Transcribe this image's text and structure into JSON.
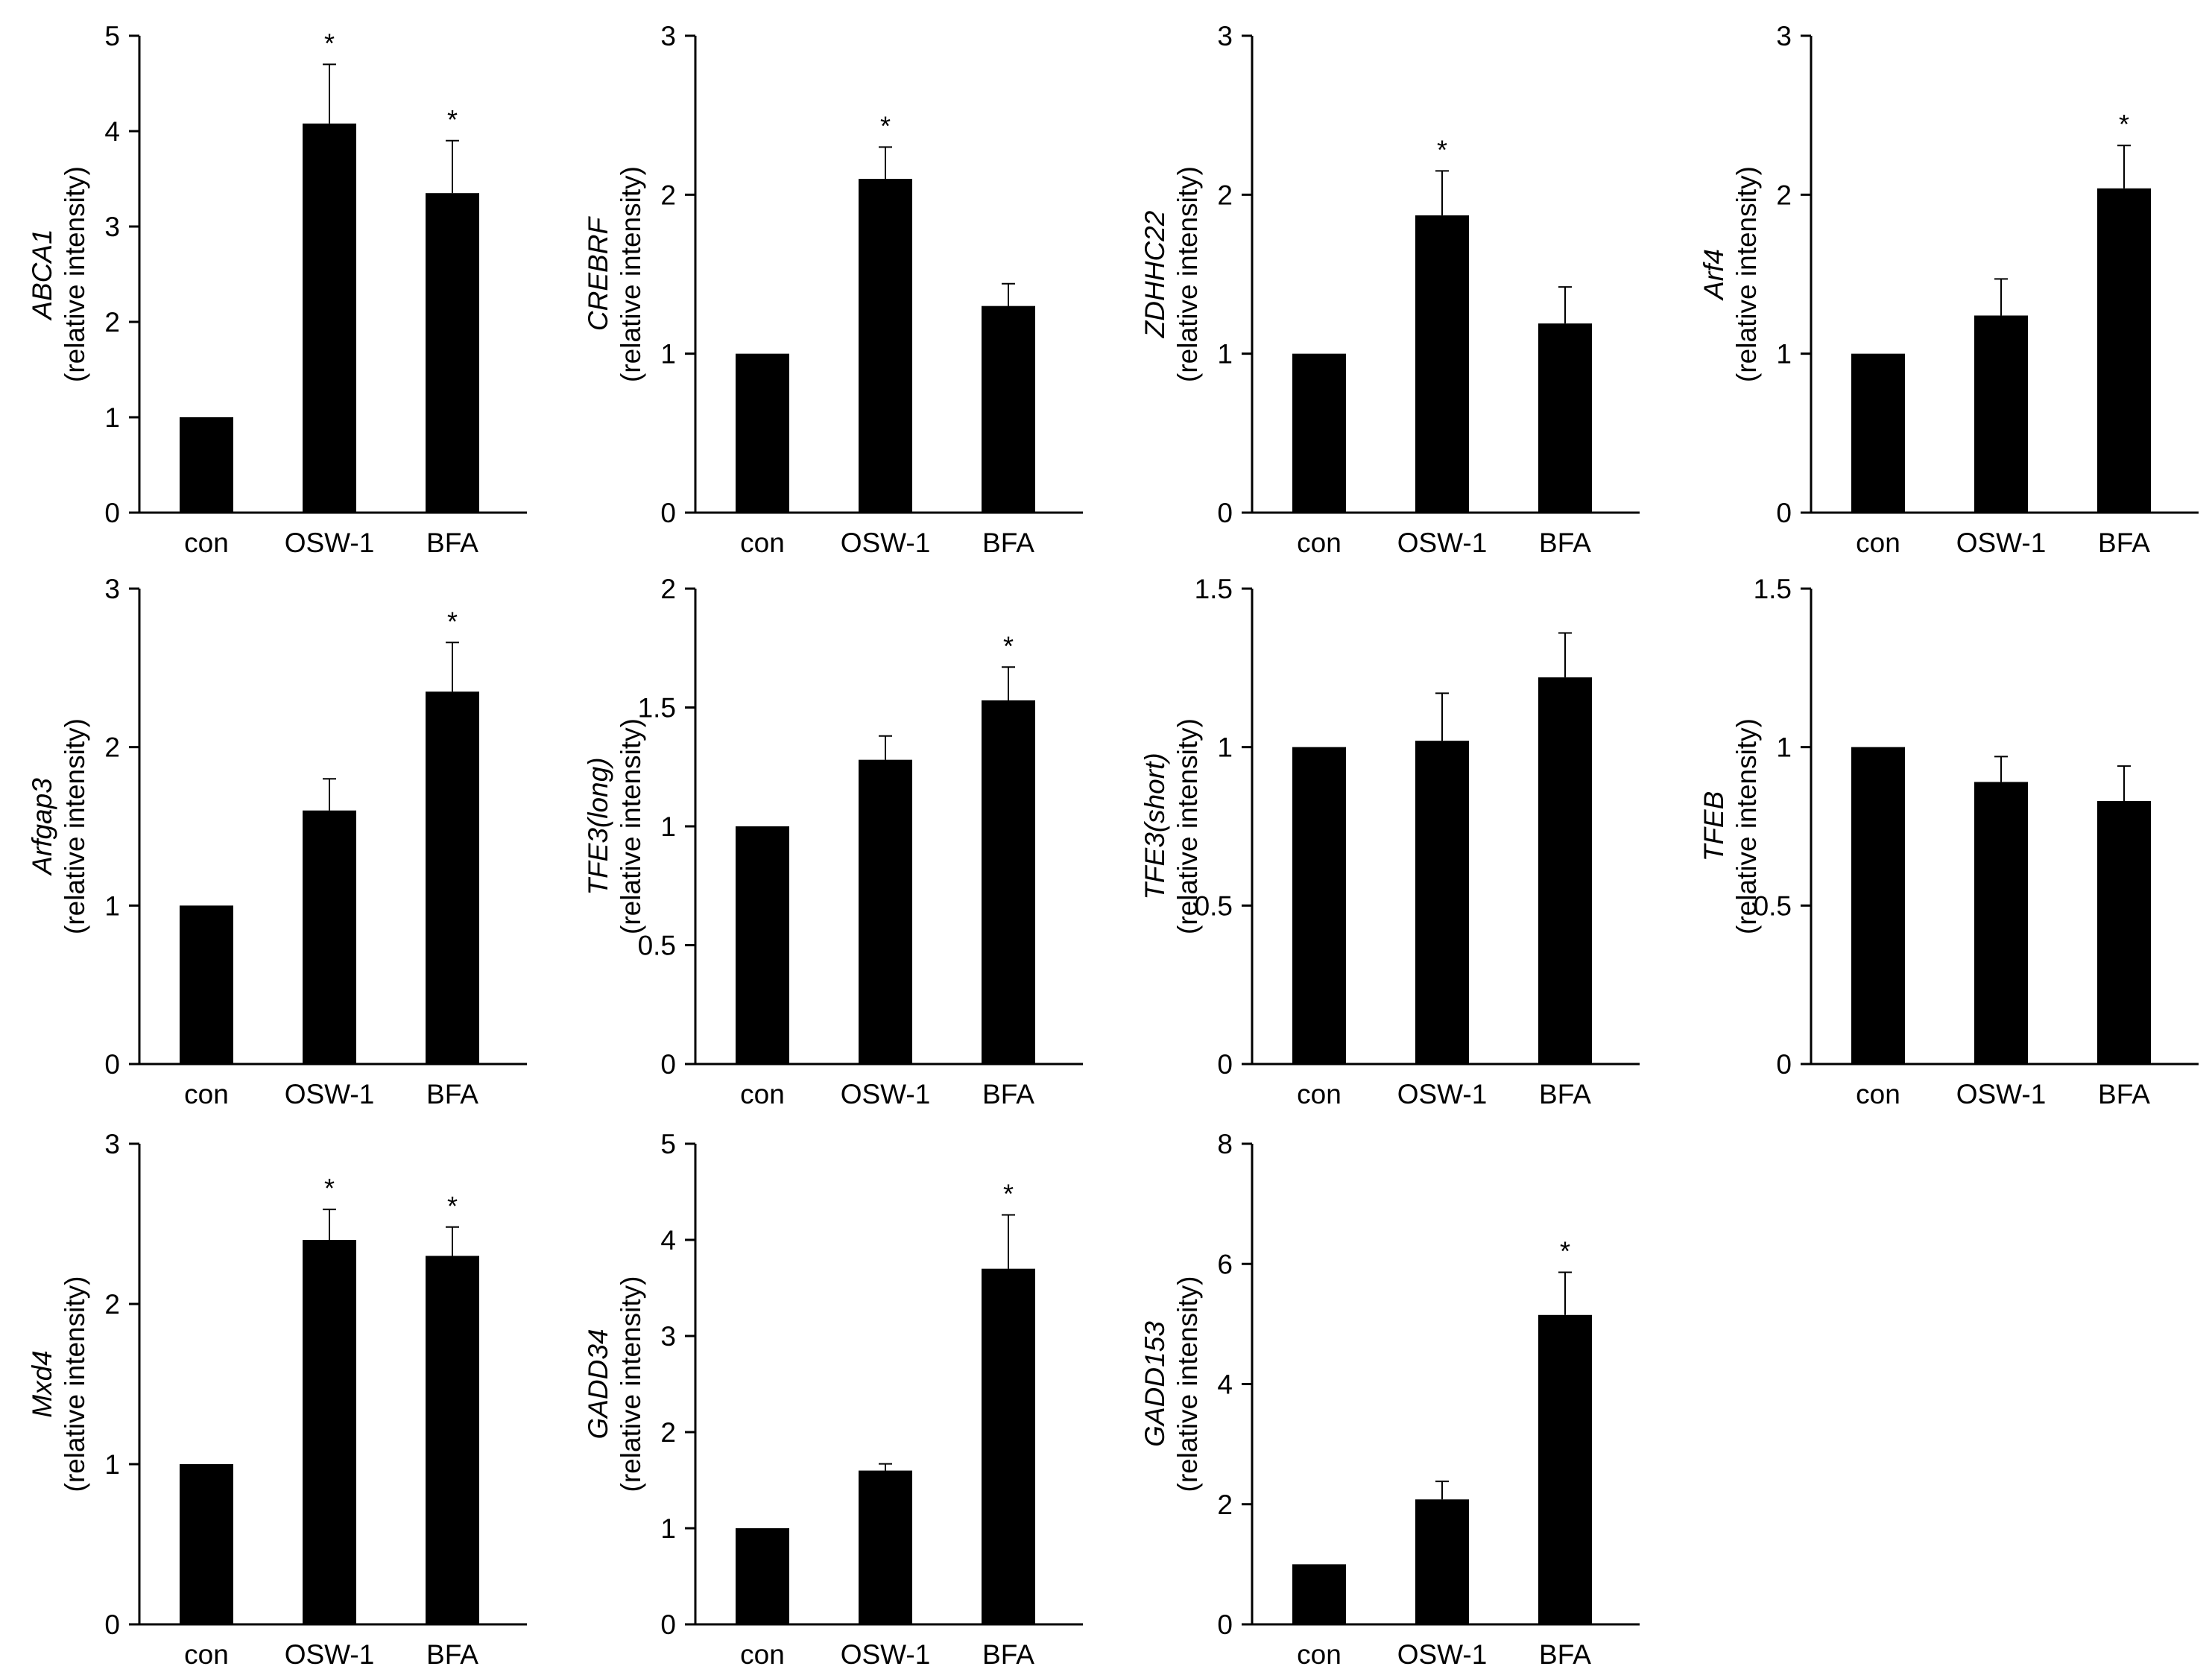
{
  "chart_data": [
    {
      "type": "bar",
      "gene": "ABCA1",
      "ylabel_unit": "(relative intensity)",
      "categories": [
        "con",
        "OSW-1",
        "BFA"
      ],
      "values": [
        1.0,
        4.08,
        3.35
      ],
      "errors": [
        0.0,
        0.62,
        0.55
      ],
      "significance": [
        "",
        "*",
        "*"
      ],
      "ylim": [
        0,
        5
      ],
      "yticks": [
        0,
        1,
        2,
        3,
        4,
        5
      ],
      "ytick_labels": [
        "0",
        "1",
        "2",
        "3",
        "4",
        "5"
      ]
    },
    {
      "type": "bar",
      "gene": "CREBRF",
      "ylabel_unit": "(relative intensity)",
      "categories": [
        "con",
        "OSW-1",
        "BFA"
      ],
      "values": [
        1.0,
        2.1,
        1.3
      ],
      "errors": [
        0.0,
        0.2,
        0.14
      ],
      "significance": [
        "",
        "*",
        ""
      ],
      "ylim": [
        0,
        3
      ],
      "yticks": [
        0,
        1,
        2,
        3
      ],
      "ytick_labels": [
        "0",
        "1",
        "2",
        "3"
      ]
    },
    {
      "type": "bar",
      "gene": "ZDHHC22",
      "ylabel_unit": "(relative intensity)",
      "categories": [
        "con",
        "OSW-1",
        "BFA"
      ],
      "values": [
        1.0,
        1.87,
        1.19
      ],
      "errors": [
        0.0,
        0.28,
        0.23
      ],
      "significance": [
        "",
        "*",
        ""
      ],
      "ylim": [
        0,
        3
      ],
      "yticks": [
        0,
        1,
        2,
        3
      ],
      "ytick_labels": [
        "0",
        "1",
        "2",
        "3"
      ]
    },
    {
      "type": "bar",
      "gene": "Arf4",
      "ylabel_unit": "(relative intensity)",
      "categories": [
        "con",
        "OSW-1",
        "BFA"
      ],
      "values": [
        1.0,
        1.24,
        2.04
      ],
      "errors": [
        0.0,
        0.23,
        0.27
      ],
      "significance": [
        "",
        "",
        "*"
      ],
      "ylim": [
        0,
        3
      ],
      "yticks": [
        0,
        1,
        2,
        3
      ],
      "ytick_labels": [
        "0",
        "1",
        "2",
        "3"
      ]
    },
    {
      "type": "bar",
      "gene": "Arfgap3",
      "ylabel_unit": "(relative intensity)",
      "categories": [
        "con",
        "OSW-1",
        "BFA"
      ],
      "values": [
        1.0,
        1.6,
        2.35
      ],
      "errors": [
        0.0,
        0.2,
        0.31
      ],
      "significance": [
        "",
        "",
        "*"
      ],
      "ylim": [
        0,
        3
      ],
      "yticks": [
        0,
        1,
        2,
        3
      ],
      "ytick_labels": [
        "0",
        "1",
        "2",
        "3"
      ]
    },
    {
      "type": "bar",
      "gene": "TFE3(long)",
      "ylabel_unit": "(relative intensity)",
      "categories": [
        "con",
        "OSW-1",
        "BFA"
      ],
      "values": [
        1.0,
        1.28,
        1.53
      ],
      "errors": [
        0.0,
        0.1,
        0.14
      ],
      "significance": [
        "",
        "",
        "*"
      ],
      "ylim": [
        0,
        2
      ],
      "yticks": [
        0,
        0.5,
        1,
        1.5,
        2
      ],
      "ytick_labels": [
        "0",
        "0.5",
        "1",
        "1.5",
        "2"
      ]
    },
    {
      "type": "bar",
      "gene": "TFE3(short)",
      "ylabel_unit": "(relative intensity)",
      "categories": [
        "con",
        "OSW-1",
        "BFA"
      ],
      "values": [
        1.0,
        1.02,
        1.22
      ],
      "errors": [
        0.0,
        0.15,
        0.14
      ],
      "significance": [
        "",
        "",
        ""
      ],
      "ylim": [
        0,
        1.5
      ],
      "yticks": [
        0,
        0.5,
        1,
        1.5
      ],
      "ytick_labels": [
        "0",
        "0.5",
        "1",
        "1.5"
      ]
    },
    {
      "type": "bar",
      "gene": "TFEB",
      "ylabel_unit": "(relative intensity)",
      "categories": [
        "con",
        "OSW-1",
        "BFA"
      ],
      "values": [
        1.0,
        0.89,
        0.83
      ],
      "errors": [
        0.0,
        0.08,
        0.11
      ],
      "significance": [
        "",
        "",
        ""
      ],
      "ylim": [
        0,
        1.5
      ],
      "yticks": [
        0,
        0.5,
        1,
        1.5
      ],
      "ytick_labels": [
        "0",
        "0.5",
        "1",
        "1.5"
      ]
    },
    {
      "type": "bar",
      "gene": "Mxd4",
      "ylabel_unit": "(relative intensity)",
      "categories": [
        "con",
        "OSW-1",
        "BFA"
      ],
      "values": [
        1.0,
        2.4,
        2.3
      ],
      "errors": [
        0.0,
        0.19,
        0.18
      ],
      "significance": [
        "",
        "*",
        "*"
      ],
      "ylim": [
        0,
        3
      ],
      "yticks": [
        0,
        1,
        2,
        3
      ],
      "ytick_labels": [
        "0",
        "1",
        "2",
        "3"
      ]
    },
    {
      "type": "bar",
      "gene": "GADD34",
      "ylabel_unit": "(relative intensity)",
      "categories": [
        "con",
        "OSW-1",
        "BFA"
      ],
      "values": [
        1.0,
        1.6,
        3.7
      ],
      "errors": [
        0.0,
        0.07,
        0.56
      ],
      "significance": [
        "",
        "",
        "*"
      ],
      "ylim": [
        0,
        5
      ],
      "yticks": [
        0,
        1,
        2,
        3,
        4,
        5
      ],
      "ytick_labels": [
        "0",
        "1",
        "2",
        "3",
        "4",
        "5"
      ]
    },
    {
      "type": "bar",
      "gene": "GADD153",
      "ylabel_unit": "(relative intensity)",
      "categories": [
        "con",
        "OSW-1",
        "BFA"
      ],
      "values": [
        1.0,
        2.08,
        5.15
      ],
      "errors": [
        0.0,
        0.3,
        0.71
      ],
      "significance": [
        "",
        "",
        "*"
      ],
      "ylim": [
        0,
        8
      ],
      "yticks": [
        0,
        2,
        4,
        6,
        8
      ],
      "ytick_labels": [
        "0",
        "2",
        "4",
        "6",
        "8"
      ]
    }
  ]
}
